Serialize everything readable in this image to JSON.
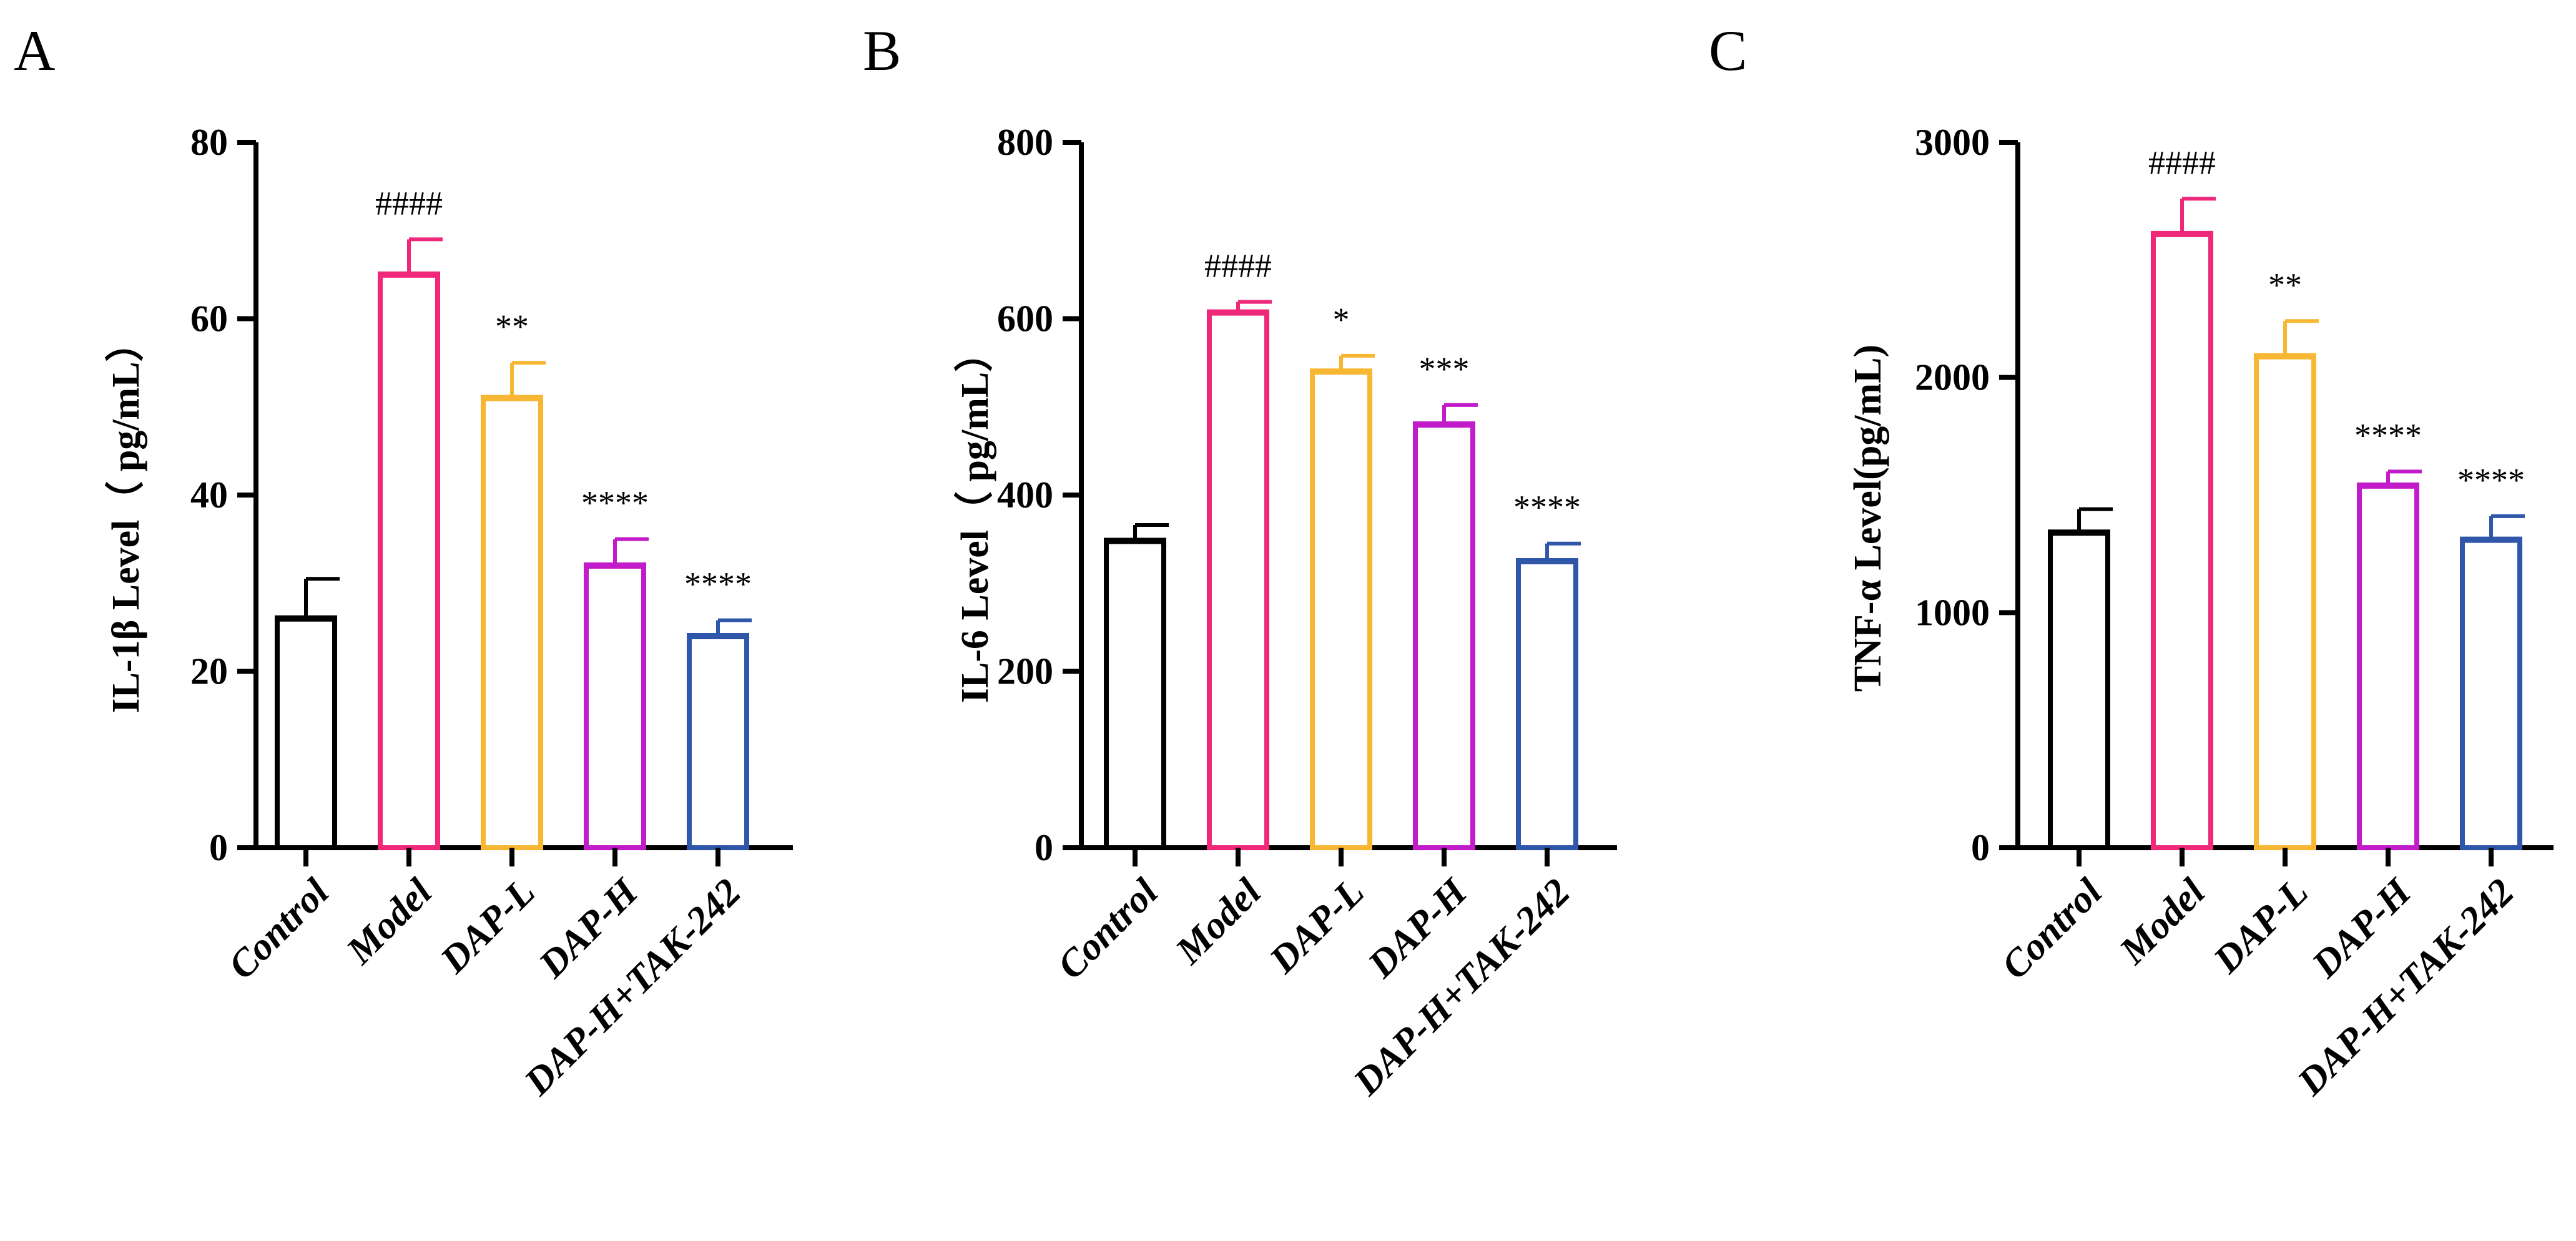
{
  "chart_data": [
    {
      "type": "bar",
      "panel": "A",
      "ylabel": "IL-1β Level（ pg/mL）",
      "ylim": [
        0,
        80
      ],
      "yticks": [
        "0",
        "20",
        "40",
        "60",
        "80"
      ],
      "categories": [
        "Control",
        "Model",
        "DAP-L",
        "DAP-H",
        "DAP-H+TAK-242"
      ],
      "values": [
        26,
        65,
        51,
        32,
        24
      ],
      "errors": [
        4.5,
        4,
        4,
        3,
        1.8
      ],
      "annotations": [
        "",
        "####",
        "**",
        "****",
        "****"
      ],
      "colors": [
        "#000000",
        "#f0287a",
        "#f7b733",
        "#c21bc9",
        "#2f56a8"
      ]
    },
    {
      "type": "bar",
      "panel": "B",
      "ylabel": "IL-6 Level（ pg/mL）",
      "ylim": [
        0,
        800
      ],
      "yticks": [
        "0",
        "200",
        "400",
        "600",
        "800"
      ],
      "categories": [
        "Control",
        "Model",
        "DAP-L",
        "DAP-H",
        "DAP-H+TAK-242"
      ],
      "values": [
        348,
        607,
        540,
        480,
        325
      ],
      "errors": [
        18,
        12,
        18,
        22,
        20
      ],
      "annotations": [
        "",
        "####",
        "*",
        "***",
        "****"
      ],
      "colors": [
        "#000000",
        "#f0287a",
        "#f7b733",
        "#c21bc9",
        "#2f56a8"
      ]
    },
    {
      "type": "bar",
      "panel": "C",
      "ylabel": "TNF-α Level(pg/mL)",
      "ylim": [
        0,
        3000
      ],
      "yticks": [
        "0",
        "1000",
        "2000",
        "3000"
      ],
      "categories": [
        "Control",
        "Model",
        "DAP-L",
        "DAP-H",
        "DAP-H+TAK-242"
      ],
      "values": [
        1340,
        2610,
        2090,
        1540,
        1310
      ],
      "errors": [
        100,
        150,
        150,
        60,
        100
      ],
      "annotations": [
        "",
        "####",
        "**",
        "****",
        "****"
      ],
      "colors": [
        "#000000",
        "#f0287a",
        "#f7b733",
        "#c21bc9",
        "#2f56a8"
      ]
    }
  ]
}
